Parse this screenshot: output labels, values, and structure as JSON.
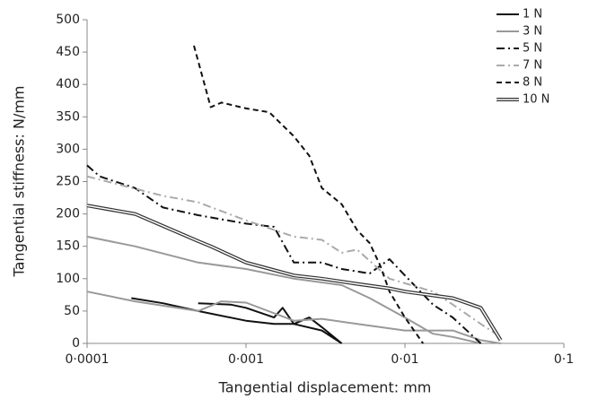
{
  "chart_data": {
    "type": "line",
    "x_label": "Tangential displacement: mm",
    "y_label": "Tangential stiffness: N/mm",
    "x_log": true,
    "xlim": [
      0.0001,
      0.1
    ],
    "xticks": [
      {
        "value": 0.0001,
        "label": "0·0001"
      },
      {
        "value": 0.001,
        "label": "0·001"
      },
      {
        "value": 0.01,
        "label": "0·01"
      },
      {
        "value": 0.1,
        "label": "0·1"
      }
    ],
    "ylim": [
      0,
      500
    ],
    "yticks": [
      0,
      50,
      100,
      150,
      200,
      250,
      300,
      350,
      400,
      450,
      500
    ],
    "grid": false,
    "legend": "top-right",
    "series": [
      {
        "name": "1 N",
        "color": "#111111",
        "dash": "solid",
        "x": [
          0.00019,
          0.0003,
          0.0005,
          0.001,
          0.0015,
          0.002,
          0.003,
          0.004,
          null,
          0.0005,
          0.0008,
          0.001,
          0.0015,
          0.0017,
          0.002,
          0.0025,
          0.003,
          0.004
        ],
        "values": [
          70,
          62,
          50,
          35,
          30,
          30,
          20,
          0,
          null,
          62,
          60,
          55,
          40,
          55,
          30,
          40,
          25,
          0
        ]
      },
      {
        "name": "3 N",
        "color": "#999999",
        "dash": "solid",
        "x": [
          0.0001,
          0.0002,
          0.0005,
          0.001,
          0.002,
          0.004,
          0.006,
          0.01,
          0.015,
          0.02,
          0.03,
          null,
          0.0001,
          0.0002,
          0.0005,
          0.0007,
          0.001,
          0.002,
          0.003,
          0.005,
          0.01,
          0.02,
          0.03,
          0.04
        ],
        "values": [
          165,
          150,
          125,
          115,
          100,
          90,
          70,
          40,
          15,
          10,
          0,
          null,
          80,
          65,
          50,
          65,
          63,
          35,
          38,
          30,
          20,
          20,
          5,
          0
        ]
      },
      {
        "name": "5 N",
        "color": "#111111",
        "dash": "dashdot",
        "x": [
          0.0001,
          0.00012,
          0.0002,
          0.0003,
          0.0005,
          0.001,
          0.0015,
          0.002,
          0.003,
          0.004,
          0.006,
          0.008,
          0.01,
          0.015,
          0.02,
          0.03
        ],
        "values": [
          275,
          258,
          240,
          210,
          198,
          185,
          180,
          125,
          125,
          115,
          108,
          130,
          105,
          60,
          40,
          0
        ]
      },
      {
        "name": "7 N",
        "color": "#aaaaaa",
        "dash": "dashdot",
        "x": [
          0.0001,
          0.0003,
          0.0005,
          0.001,
          0.002,
          0.003,
          0.004,
          0.005,
          0.008,
          0.015,
          0.02,
          0.03,
          0.04
        ],
        "values": [
          258,
          228,
          218,
          190,
          165,
          160,
          140,
          145,
          100,
          80,
          60,
          30,
          10
        ]
      },
      {
        "name": "8 N",
        "color": "#111111",
        "dash": "dashed",
        "x": [
          0.00047,
          0.0006,
          0.0007,
          0.001,
          0.0014,
          0.002,
          0.0025,
          0.003,
          0.004,
          0.005,
          0.006,
          0.007,
          0.008,
          0.01,
          0.013
        ],
        "values": [
          460,
          365,
          372,
          363,
          357,
          320,
          290,
          240,
          215,
          175,
          155,
          120,
          80,
          40,
          0
        ]
      },
      {
        "name": "10 N",
        "color": "#333333",
        "dash": "double",
        "x": [
          0.0001,
          0.0002,
          0.0005,
          0.0006,
          0.001,
          0.002,
          0.003,
          0.005,
          0.008,
          0.01,
          0.02,
          0.03,
          0.04
        ],
        "values": [
          213,
          200,
          158,
          150,
          125,
          105,
          100,
          92,
          85,
          80,
          70,
          55,
          5
        ]
      }
    ]
  }
}
